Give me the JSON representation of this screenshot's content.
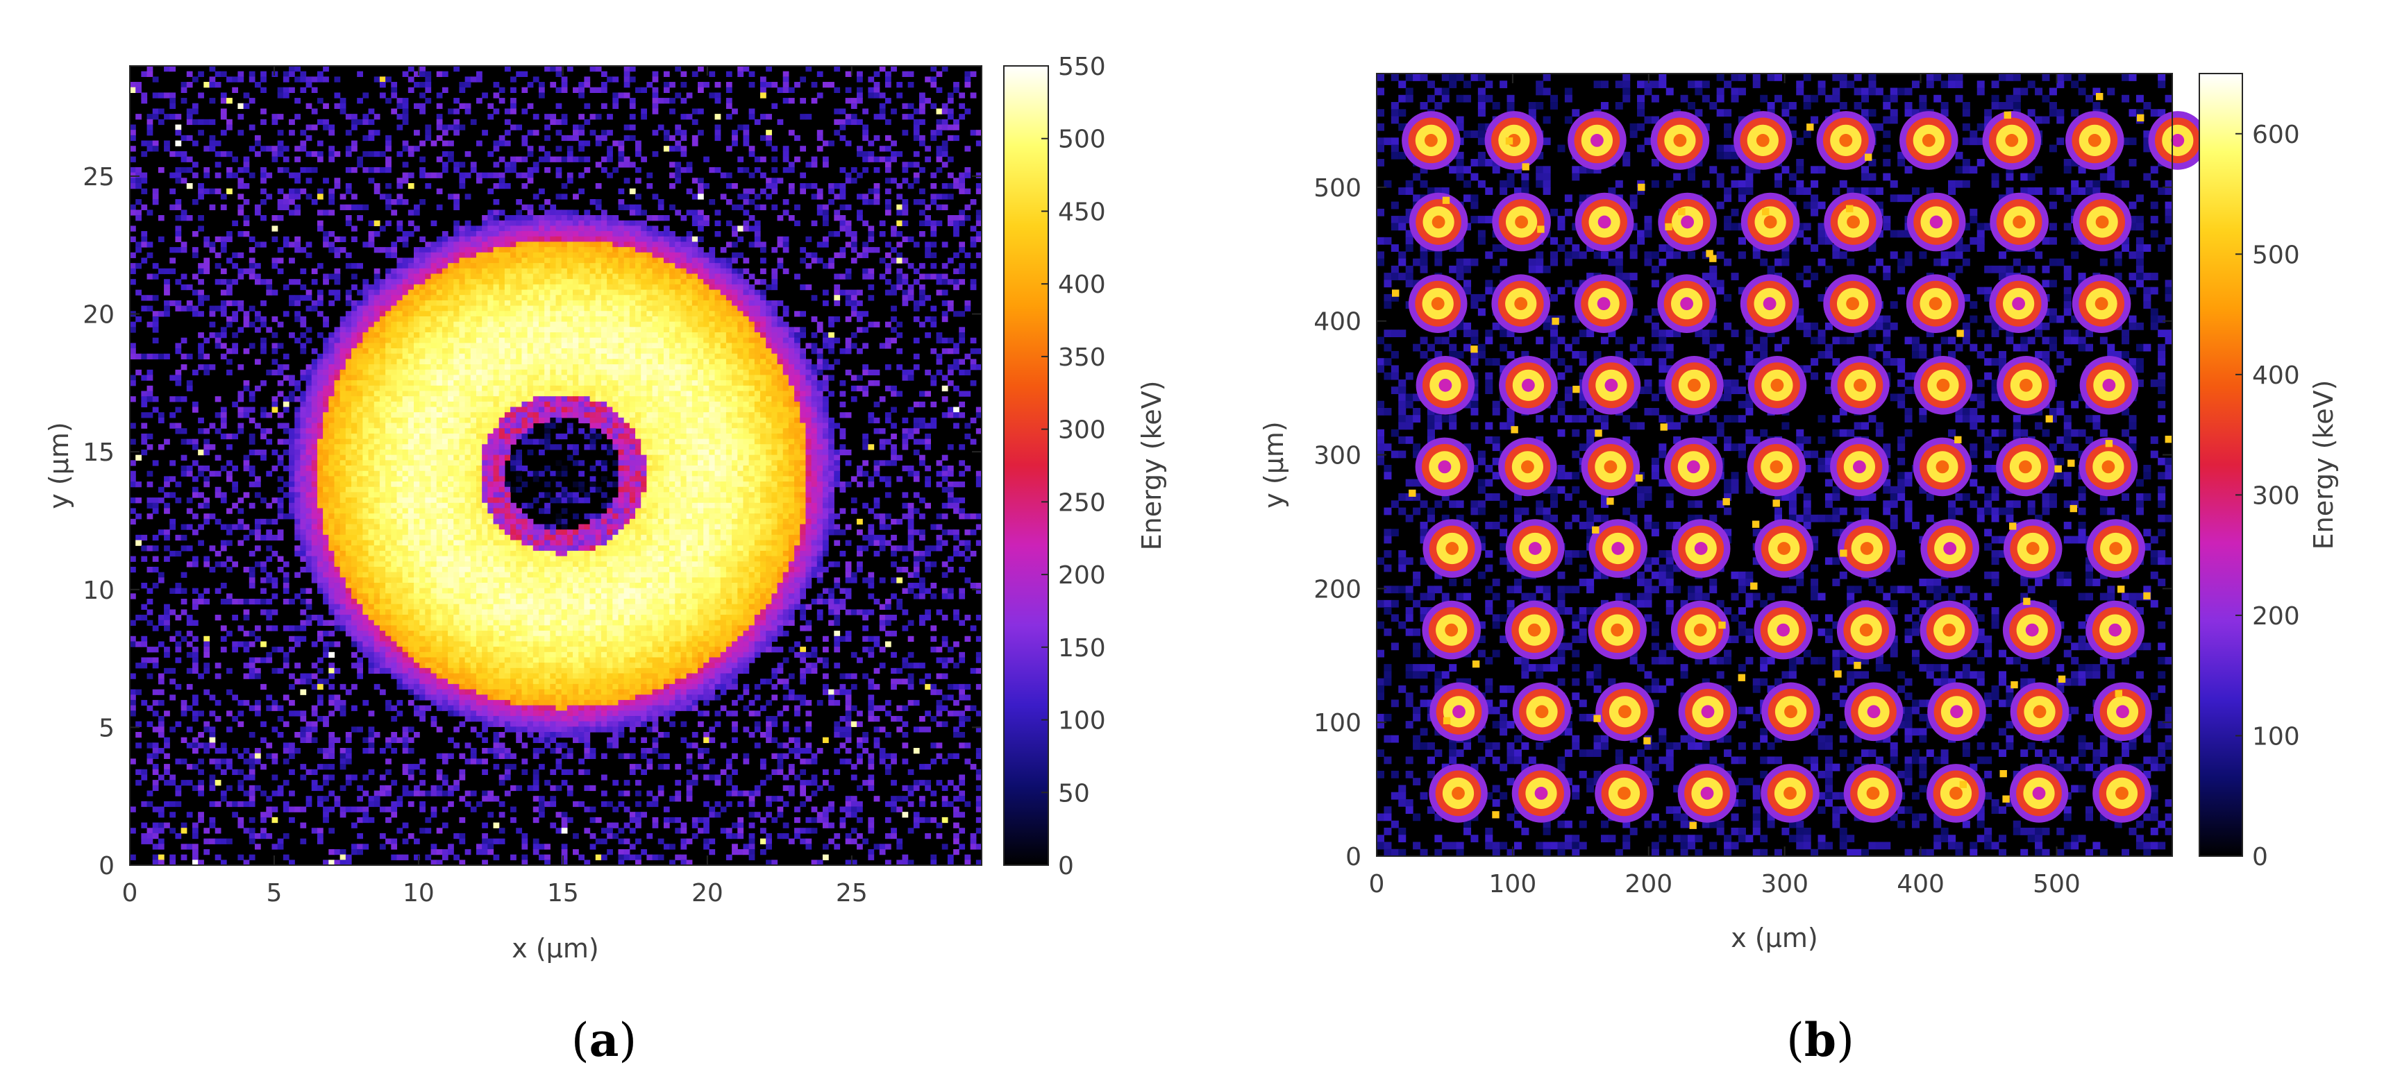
{
  "chart_data": [
    {
      "type": "heatmap",
      "panel_label": "a",
      "description_shape": "ring",
      "xlabel": "x (μm)",
      "ylabel": "y (μm)",
      "xlim": [
        0,
        29.5
      ],
      "ylim": [
        0,
        29
      ],
      "x_ticks": [
        0,
        5,
        10,
        15,
        20,
        25
      ],
      "y_ticks": [
        0,
        5,
        10,
        15,
        20,
        25
      ],
      "grid": false,
      "colorbar": {
        "label": "Energy (keV)",
        "range": [
          0,
          550
        ],
        "ticks": [
          0,
          50,
          100,
          150,
          200,
          250,
          300,
          350,
          400,
          450,
          500,
          550
        ]
      },
      "ring": {
        "center_x": 15,
        "center_y": 14.2,
        "inner_radius": 2,
        "outer_radius": 8.5,
        "edge_radius": 9.5,
        "peak_energy": 540
      }
    },
    {
      "type": "heatmap",
      "panel_label": "b",
      "description_shape": "spot-grid",
      "xlabel": "x (μm)",
      "ylabel": "y (μm)",
      "xlim": [
        0,
        585
      ],
      "ylim": [
        0,
        585
      ],
      "x_ticks": [
        0,
        100,
        200,
        300,
        400,
        500
      ],
      "y_ticks": [
        0,
        100,
        200,
        300,
        400,
        500
      ],
      "grid": false,
      "colorbar": {
        "label": "Energy (keV)",
        "range": [
          0,
          650
        ],
        "ticks": [
          0,
          100,
          200,
          300,
          400,
          500,
          600
        ]
      },
      "spot_grid": {
        "pitch": 61,
        "first_x": 40,
        "first_y": 535,
        "shear_per_row": 2.5,
        "spot_radius": 16,
        "peak_energy": 640
      }
    }
  ],
  "colormap_stops": [
    "#000000",
    "#0d0d6e",
    "#3b1cc8",
    "#8a2fe0",
    "#cc22b8",
    "#e0203e",
    "#f45a10",
    "#ff9e08",
    "#ffd21c",
    "#ffff6e",
    "#ffffff"
  ]
}
